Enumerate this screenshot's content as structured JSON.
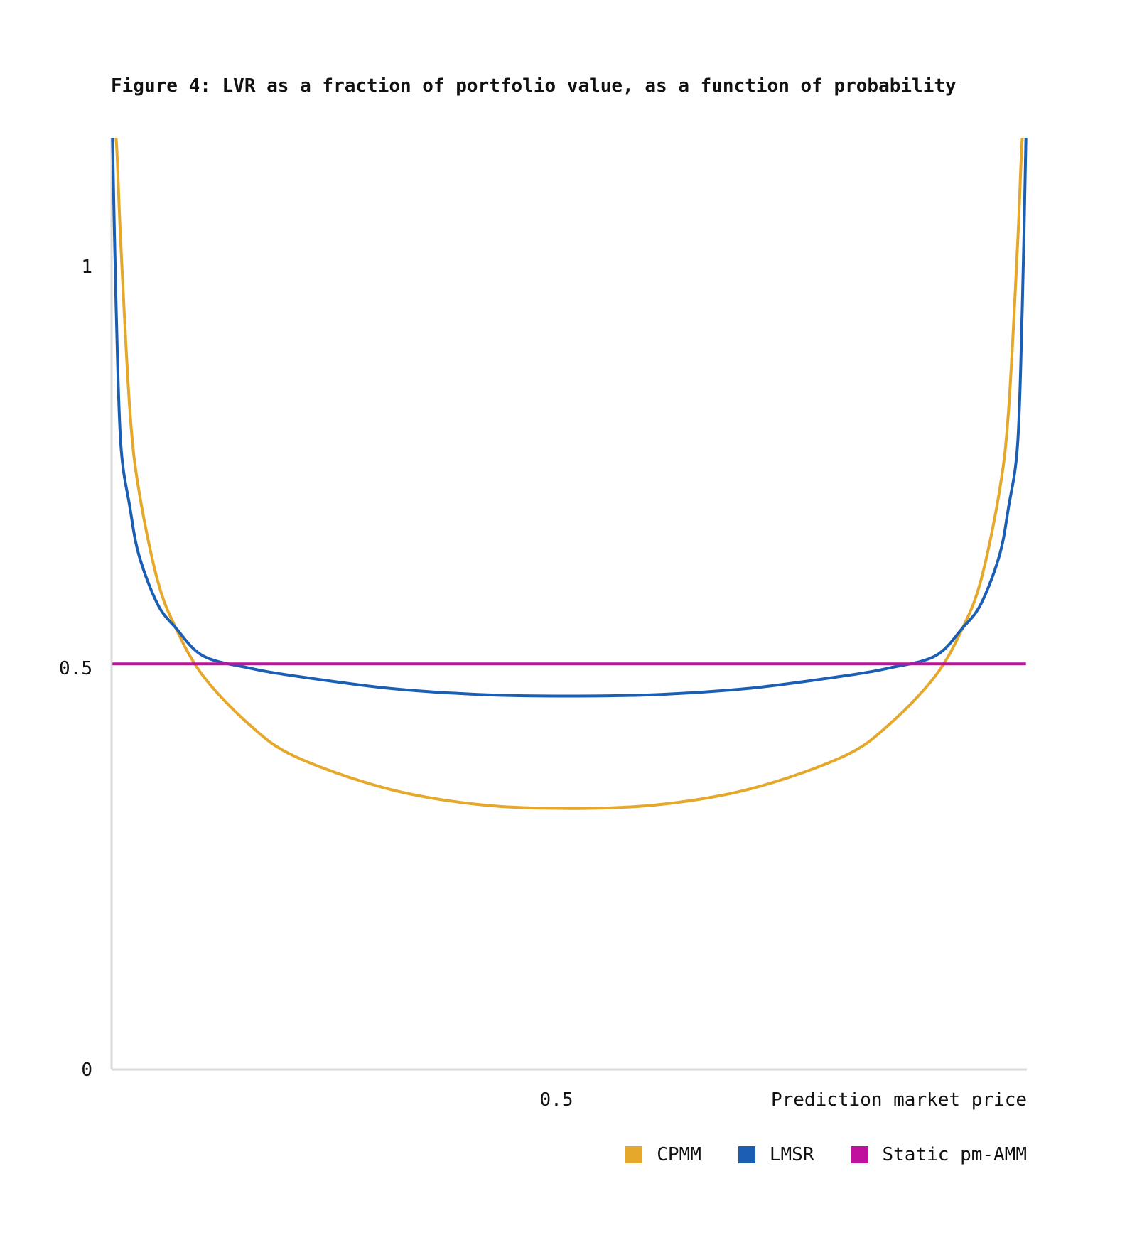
{
  "chart_data": {
    "type": "line",
    "title": "Figure 4: LVR as a fraction of portfolio value, as a function of probability",
    "xlabel": "Prediction market price",
    "ylabel": "",
    "xlim": [
      0,
      1
    ],
    "ylim": [
      0,
      1.16
    ],
    "x_ticks": [
      {
        "value": 0.5,
        "label": "0.5"
      }
    ],
    "y_ticks": [
      {
        "value": 0,
        "label": "0"
      },
      {
        "value": 0.5,
        "label": "0.5"
      },
      {
        "value": 1,
        "label": "1"
      }
    ],
    "grid": false,
    "legend_position": "bottom-right",
    "x": [
      0.001,
      0.005,
      0.01,
      0.02,
      0.03,
      0.05,
      0.07,
      0.1,
      0.15,
      0.2,
      0.3,
      0.4,
      0.5,
      0.6,
      0.7,
      0.8,
      0.85,
      0.9,
      0.93,
      0.95,
      0.97,
      0.98,
      0.99,
      0.995,
      0.999
    ],
    "series": [
      {
        "name": "CPMM",
        "color": "#E5A82A",
        "values": [
          1.16,
          1.16,
          1.03,
          0.82,
          0.72,
          0.61,
          0.55,
          0.49,
          0.43,
          0.39,
          0.35,
          0.33,
          0.325,
          0.33,
          0.35,
          0.39,
          0.43,
          0.49,
          0.55,
          0.61,
          0.72,
          0.82,
          1.03,
          1.16,
          1.16
        ]
      },
      {
        "name": "LMSR",
        "color": "#1B5FB4",
        "values": [
          1.16,
          0.95,
          0.78,
          0.7,
          0.64,
          0.58,
          0.55,
          0.515,
          0.5,
          0.49,
          0.475,
          0.467,
          0.465,
          0.467,
          0.475,
          0.49,
          0.5,
          0.515,
          0.55,
          0.58,
          0.64,
          0.7,
          0.78,
          0.95,
          1.16
        ]
      },
      {
        "name": "Static pm-AMM",
        "color": "#C0119E",
        "values": [
          0.505,
          0.505,
          0.505,
          0.505,
          0.505,
          0.505,
          0.505,
          0.505,
          0.505,
          0.505,
          0.505,
          0.505,
          0.505,
          0.505,
          0.505,
          0.505,
          0.505,
          0.505,
          0.505,
          0.505,
          0.505,
          0.505,
          0.505,
          0.505,
          0.505
        ]
      }
    ],
    "axis_color": "#D9D9D9"
  }
}
